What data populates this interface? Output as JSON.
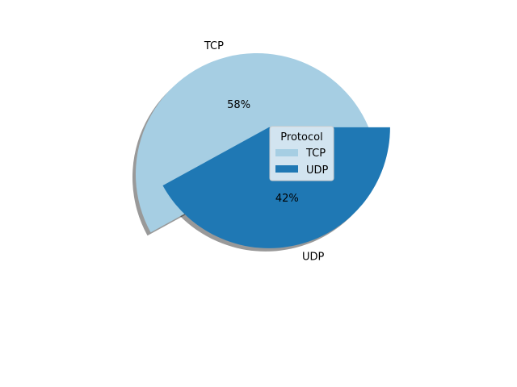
{
  "chart_data": {
    "type": "pie",
    "categories": [
      "TCP",
      "UDP"
    ],
    "values": [
      58,
      42
    ],
    "percent_labels": [
      "58%",
      "42%"
    ],
    "colors": [
      "#a6cee3",
      "#1f78b4"
    ],
    "exploded": [
      false,
      true
    ],
    "shadow": true,
    "start_angle_deg": 0,
    "legend": {
      "title": "Protocol",
      "entries": [
        "TCP",
        "UDP"
      ],
      "placement": "center"
    },
    "title": ""
  }
}
